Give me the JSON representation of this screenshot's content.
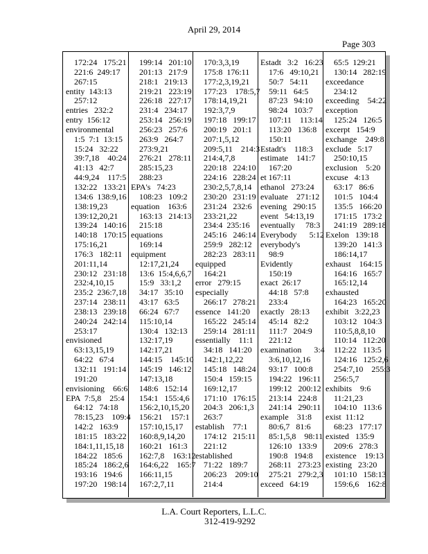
{
  "header": {
    "date": "April 29, 2014",
    "page": "Page 303"
  },
  "columns": [
    [
      {
        "text": "172:24   175:21",
        "sub": true
      },
      {
        "text": "221:6  249:17",
        "sub": true
      },
      {
        "text": "267:15",
        "sub": true
      },
      {
        "text": "entity  143:13",
        "sub": false
      },
      {
        "text": "257:12",
        "sub": true
      },
      {
        "text": "entries   232:2",
        "sub": false
      },
      {
        "text": "entry  156:12",
        "sub": false
      },
      {
        "text": "environmental",
        "sub": false
      },
      {
        "text": "1:5  7:1  13:15",
        "sub": true
      },
      {
        "text": "15:24   32:22",
        "sub": true
      },
      {
        "text": "39:7,18    40:24",
        "sub": true
      },
      {
        "text": "41:13   42:7",
        "sub": true
      },
      {
        "text": "44:9,24    117:5",
        "sub": true
      },
      {
        "text": "132:22   133:21",
        "sub": true
      },
      {
        "text": "134:6  138:9,16",
        "sub": true
      },
      {
        "text": "138:19,23",
        "sub": true
      },
      {
        "text": "139:12,20,21",
        "sub": true
      },
      {
        "text": "139:24   140:16",
        "sub": true
      },
      {
        "text": "140:18   170:15",
        "sub": true
      },
      {
        "text": "175:16,21",
        "sub": true
      },
      {
        "text": "176:3   182:11",
        "sub": true
      },
      {
        "text": "201:11,14",
        "sub": true
      },
      {
        "text": "230:12   231:18",
        "sub": true
      },
      {
        "text": "232:4,10,15",
        "sub": true
      },
      {
        "text": "235:2  236:7,18",
        "sub": true
      },
      {
        "text": "237:14   238:11",
        "sub": true
      },
      {
        "text": "238:13   239:18",
        "sub": true
      },
      {
        "text": "240:24   242:14",
        "sub": true
      },
      {
        "text": "253:17",
        "sub": true
      },
      {
        "text": "envisioned",
        "sub": false
      },
      {
        "text": "63:13,15,19",
        "sub": true
      },
      {
        "text": "64:22   67:4",
        "sub": true
      },
      {
        "text": "132:11   191:14",
        "sub": true
      },
      {
        "text": "191:20",
        "sub": true
      },
      {
        "text": "envisioning    66:6",
        "sub": false
      },
      {
        "text": "EPA  7:5,8    25:4",
        "sub": false
      },
      {
        "text": "64:12   74:18",
        "sub": true
      },
      {
        "text": "78:15,23    109:4",
        "sub": true
      },
      {
        "text": "142:2   163:9",
        "sub": true
      },
      {
        "text": "181:15   183:22",
        "sub": true
      },
      {
        "text": "184:1,11,15,18",
        "sub": true
      },
      {
        "text": "184:22   185:6",
        "sub": true
      },
      {
        "text": "185:24   186:2,6",
        "sub": true
      },
      {
        "text": "193:16   194:6",
        "sub": true
      },
      {
        "text": "197:20   198:14",
        "sub": true
      }
    ],
    [
      {
        "text": "199:14   201:10",
        "sub": true
      },
      {
        "text": "201:13   217:9",
        "sub": true
      },
      {
        "text": "218:1   219:13",
        "sub": true
      },
      {
        "text": "219:21   223:19",
        "sub": true
      },
      {
        "text": "226:18   227:17",
        "sub": true
      },
      {
        "text": "231:4   234:17",
        "sub": true
      },
      {
        "text": "253:14   256:19",
        "sub": true
      },
      {
        "text": "256:23   257:6",
        "sub": true
      },
      {
        "text": "263:9   264:7",
        "sub": true
      },
      {
        "text": "273:9,21",
        "sub": true
      },
      {
        "text": "276:21   278:11",
        "sub": true
      },
      {
        "text": "285:15,23",
        "sub": true
      },
      {
        "text": "288:23",
        "sub": true
      },
      {
        "text": "EPA's   74:23",
        "sub": false
      },
      {
        "text": "108:23   109:2",
        "sub": true
      },
      {
        "text": "equation    163:6",
        "sub": false
      },
      {
        "text": "163:13   214:13",
        "sub": true
      },
      {
        "text": "215:18",
        "sub": true
      },
      {
        "text": "equations",
        "sub": false
      },
      {
        "text": "169:14",
        "sub": true
      },
      {
        "text": "equipment",
        "sub": false
      },
      {
        "text": "12:17,21,24",
        "sub": true
      },
      {
        "text": "13:6  15:4,6,6,7",
        "sub": true
      },
      {
        "text": "15:9   33:1,2",
        "sub": true
      },
      {
        "text": "34:17   35:10",
        "sub": true
      },
      {
        "text": "43:17   63:5",
        "sub": true
      },
      {
        "text": "66:24   67:7",
        "sub": true
      },
      {
        "text": "115:10,14",
        "sub": true
      },
      {
        "text": "130:4   132:13",
        "sub": true
      },
      {
        "text": "132:17,19",
        "sub": true
      },
      {
        "text": "142:17,21",
        "sub": true
      },
      {
        "text": "144:15    145:10",
        "sub": true
      },
      {
        "text": "145:19   146:12",
        "sub": true
      },
      {
        "text": "147:13,18",
        "sub": true
      },
      {
        "text": "148:6   152:14",
        "sub": true
      },
      {
        "text": "154:1   155:4,6",
        "sub": true
      },
      {
        "text": "156:2,10,15,20",
        "sub": true
      },
      {
        "text": "156:21    157:1",
        "sub": true
      },
      {
        "text": "157:10,15,17",
        "sub": true
      },
      {
        "text": "160:8,9,14,20",
        "sub": true
      },
      {
        "text": "160:21   161:3",
        "sub": true
      },
      {
        "text": "162:7,8    163:12",
        "sub": true
      },
      {
        "text": "164:6,22    165:7",
        "sub": true
      },
      {
        "text": "166:11,15",
        "sub": true
      },
      {
        "text": "167:2,7,11",
        "sub": true
      }
    ],
    [
      {
        "text": "170:3,3,19",
        "sub": true
      },
      {
        "text": "175:8  176:11",
        "sub": true
      },
      {
        "text": "177:2,3,19,21",
        "sub": true
      },
      {
        "text": "177:23    178:5,7",
        "sub": true
      },
      {
        "text": "178:14,19,21",
        "sub": true
      },
      {
        "text": "192:3,7,9",
        "sub": true
      },
      {
        "text": "197:18   199:17",
        "sub": true
      },
      {
        "text": "200:19   201:1",
        "sub": true
      },
      {
        "text": "207:1,5,12",
        "sub": true
      },
      {
        "text": "209:5,11    214:3",
        "sub": true
      },
      {
        "text": "214:4,7,8",
        "sub": true
      },
      {
        "text": "220:18   224:10",
        "sub": true
      },
      {
        "text": "224:16   228:24",
        "sub": true
      },
      {
        "text": "230:2,5,7,8,14",
        "sub": true
      },
      {
        "text": "230:20   231:19",
        "sub": true
      },
      {
        "text": "231:24   232:6",
        "sub": true
      },
      {
        "text": "233:21,22",
        "sub": true
      },
      {
        "text": "234:4  235:16",
        "sub": true
      },
      {
        "text": "245:16   246:14",
        "sub": true
      },
      {
        "text": "259:9   282:12",
        "sub": true
      },
      {
        "text": "282:23   283:11",
        "sub": true
      },
      {
        "text": "equipped",
        "sub": false
      },
      {
        "text": "164:21",
        "sub": true
      },
      {
        "text": "error   279:15",
        "sub": false
      },
      {
        "text": "especially",
        "sub": false
      },
      {
        "text": "266:17   278:21",
        "sub": true
      },
      {
        "text": "essence   141:20",
        "sub": false
      },
      {
        "text": "165:22   245:14",
        "sub": true
      },
      {
        "text": "259:14   281:11",
        "sub": true
      },
      {
        "text": "essentially    11:1",
        "sub": false
      },
      {
        "text": "34:18   141:20",
        "sub": true
      },
      {
        "text": "142:1,12,22",
        "sub": true
      },
      {
        "text": "145:18   148:24",
        "sub": true
      },
      {
        "text": "150:4   159:15",
        "sub": true
      },
      {
        "text": "169:12,17",
        "sub": true
      },
      {
        "text": "171:10   176:15",
        "sub": true
      },
      {
        "text": "204:3   206:1,3",
        "sub": true
      },
      {
        "text": "263:7",
        "sub": true
      },
      {
        "text": "establish    77:1",
        "sub": false
      },
      {
        "text": "174:12   215:11",
        "sub": true
      },
      {
        "text": "221:12",
        "sub": true
      },
      {
        "text": "established",
        "sub": false
      },
      {
        "text": "71:22   189:7",
        "sub": true
      },
      {
        "text": "206:23    209:10",
        "sub": true
      },
      {
        "text": "214:4",
        "sub": true
      }
    ],
    [
      {
        "text": "Estadt   3:2   16:23",
        "sub": false
      },
      {
        "text": "17:6   49:10,21",
        "sub": true
      },
      {
        "text": "50:7   54:11",
        "sub": true
      },
      {
        "text": "59:11   64:5",
        "sub": true
      },
      {
        "text": "87:23   94:10",
        "sub": true
      },
      {
        "text": "98:24   103:7",
        "sub": true
      },
      {
        "text": "107:11    113:14",
        "sub": true
      },
      {
        "text": "113:20   136:8",
        "sub": true
      },
      {
        "text": "150:11",
        "sub": true
      },
      {
        "text": "Estadt's    118:3",
        "sub": false
      },
      {
        "text": "estimate    141:7",
        "sub": false
      },
      {
        "text": "167:20",
        "sub": true
      },
      {
        "text": "et 167:11",
        "sub": false
      },
      {
        "text": "ethanol   273:24",
        "sub": false
      },
      {
        "text": "evaluate    271:12",
        "sub": false
      },
      {
        "text": "evening   290:15",
        "sub": false
      },
      {
        "text": "event   54:13,19",
        "sub": false
      },
      {
        "text": "eventually     78:3",
        "sub": false
      },
      {
        "text": "Everybody      5:12",
        "sub": false
      },
      {
        "text": "everybody's",
        "sub": false
      },
      {
        "text": "98:9",
        "sub": true
      },
      {
        "text": "Evidently",
        "sub": false
      },
      {
        "text": "150:19",
        "sub": true
      },
      {
        "text": "exact  26:17",
        "sub": false
      },
      {
        "text": "44:18   57:8",
        "sub": true
      },
      {
        "text": "233:4",
        "sub": true
      },
      {
        "text": "exactly   28:13",
        "sub": false
      },
      {
        "text": "45:14   82:2",
        "sub": true
      },
      {
        "text": "111:7   204:9",
        "sub": true
      },
      {
        "text": "221:12",
        "sub": true
      },
      {
        "text": "examination      3:4",
        "sub": false
      },
      {
        "text": "3:6,10,12,16",
        "sub": true
      },
      {
        "text": "93:17   100:8",
        "sub": true
      },
      {
        "text": "194:22   196:11",
        "sub": true
      },
      {
        "text": "199:12   200:12",
        "sub": true
      },
      {
        "text": "213:14   224:8",
        "sub": true
      },
      {
        "text": "241:14   290:11",
        "sub": true
      },
      {
        "text": "example    31:8",
        "sub": false
      },
      {
        "text": "80:6,7   81:6",
        "sub": true
      },
      {
        "text": "85:1,5,8    98:11",
        "sub": true
      },
      {
        "text": "126:10   133:9",
        "sub": true
      },
      {
        "text": "190:8   194:8",
        "sub": true
      },
      {
        "text": "268:11   273:23",
        "sub": true
      },
      {
        "text": "275:21   279:2,3",
        "sub": true
      },
      {
        "text": "exceed   64:19",
        "sub": false
      }
    ],
    [
      {
        "text": "65:5  129:21",
        "sub": true
      },
      {
        "text": "130:14   282:19",
        "sub": true
      },
      {
        "text": "exceedance",
        "sub": false
      },
      {
        "text": "234:12",
        "sub": true
      },
      {
        "text": "exceeding    54:22",
        "sub": false
      },
      {
        "text": "exception",
        "sub": false
      },
      {
        "text": "125:24   126:5",
        "sub": true
      },
      {
        "text": "excerpt   154:9",
        "sub": false
      },
      {
        "text": "exchange    249:8",
        "sub": false
      },
      {
        "text": "exclude   5:17",
        "sub": false
      },
      {
        "text": "250:10,15",
        "sub": true
      },
      {
        "text": "exclusion    5:20",
        "sub": false
      },
      {
        "text": "excuse   4:13",
        "sub": false
      },
      {
        "text": "63:17   86:6",
        "sub": true
      },
      {
        "text": "101:5   104:4",
        "sub": true
      },
      {
        "text": "135:5   166:20",
        "sub": true
      },
      {
        "text": "171:15   173:2",
        "sub": true
      },
      {
        "text": "241:19   289:18",
        "sub": true
      },
      {
        "text": "Exelon   139:18",
        "sub": false
      },
      {
        "text": "139:20   141:3",
        "sub": true
      },
      {
        "text": "186:14,17",
        "sub": true
      },
      {
        "text": "exhaust    164:15",
        "sub": false
      },
      {
        "text": "164:16   165:7",
        "sub": true
      },
      {
        "text": "165:12,14",
        "sub": true
      },
      {
        "text": "exhausted",
        "sub": false
      },
      {
        "text": "164:23   165:20",
        "sub": true
      },
      {
        "text": "exhibit   3:22,23",
        "sub": false
      },
      {
        "text": "103:12   104:3",
        "sub": true
      },
      {
        "text": "110:5,8,8,10",
        "sub": true
      },
      {
        "text": "110:14   112:20",
        "sub": true
      },
      {
        "text": "112:22   113:5",
        "sub": true
      },
      {
        "text": "124:16   125:2,6",
        "sub": true
      },
      {
        "text": "254:7,10    255:3",
        "sub": true
      },
      {
        "text": "256:5,7",
        "sub": true
      },
      {
        "text": "exhibits    9:6",
        "sub": false
      },
      {
        "text": "11:21,23",
        "sub": true
      },
      {
        "text": "104:10   113:6",
        "sub": true
      },
      {
        "text": "exist  11:12",
        "sub": false
      },
      {
        "text": "68:23   177:17",
        "sub": true
      },
      {
        "text": "existed   135:9",
        "sub": false
      },
      {
        "text": "209:6   278:3",
        "sub": true
      },
      {
        "text": "existence    19:13",
        "sub": false
      },
      {
        "text": "existing   23:20",
        "sub": false
      },
      {
        "text": "101:10   158:13",
        "sub": true
      },
      {
        "text": "159:6,6    162:8",
        "sub": true
      }
    ]
  ],
  "footer": {
    "company": "L.A. Court Reporters, L.L.C.",
    "phone": "312-419-9292"
  }
}
